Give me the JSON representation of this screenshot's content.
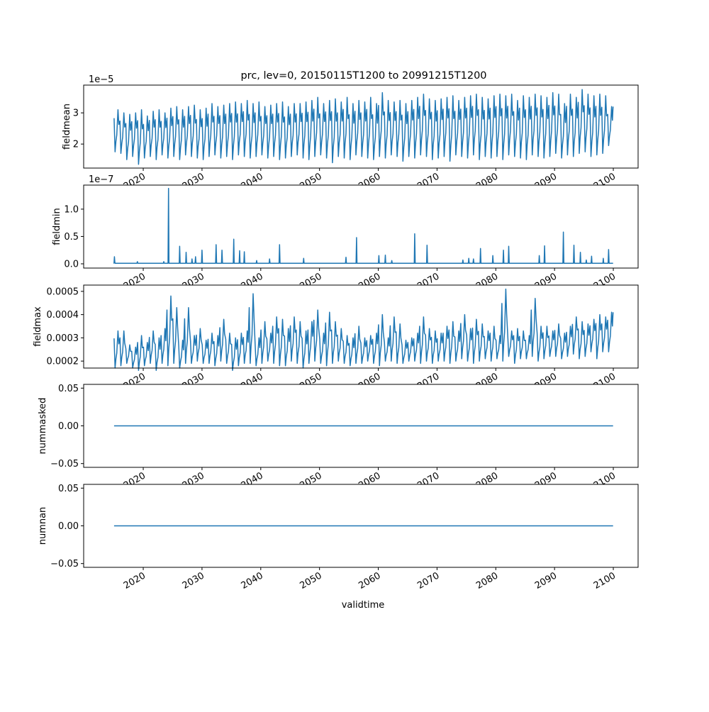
{
  "chart_data": {
    "type": "line",
    "title": "prc, lev=0, 20150115T1200 to 20991215T1200",
    "xlabel": "validtime",
    "x_range_years": [
      2015,
      2100
    ],
    "x_ticks": [
      "2020",
      "2030",
      "2040",
      "2050",
      "2060",
      "2070",
      "2080",
      "2090",
      "2100"
    ],
    "line_color": "#1f77b4",
    "subplots": [
      {
        "ylabel": "fieldmean",
        "offset_text": "1e−5",
        "scale": 1e-05,
        "ylim": [
          1.23,
          3.89
        ],
        "yticks": [
          {
            "v": 2,
            "label": "2"
          },
          {
            "v": 3,
            "label": "3"
          }
        ],
        "encoding": "annual_peak_trough",
        "peaks": [
          3.1,
          3.0,
          2.95,
          3.0,
          3.1,
          2.9,
          3.05,
          3.1,
          3.0,
          3.15,
          3.2,
          3.1,
          3.2,
          3.25,
          3.1,
          3.15,
          3.3,
          3.2,
          3.25,
          3.3,
          3.35,
          3.3,
          3.4,
          3.3,
          3.35,
          3.2,
          3.25,
          3.3,
          3.35,
          3.2,
          3.3,
          3.3,
          3.35,
          3.4,
          3.5,
          3.3,
          3.4,
          3.45,
          3.35,
          3.5,
          3.3,
          3.4,
          3.35,
          3.5,
          3.3,
          3.65,
          3.4,
          3.35,
          3.4,
          3.3,
          3.4,
          3.5,
          3.6,
          3.45,
          3.4,
          3.45,
          3.5,
          3.55,
          3.4,
          3.5,
          3.55,
          3.6,
          3.5,
          3.45,
          3.55,
          3.6,
          3.55,
          3.6,
          3.4,
          3.55,
          3.5,
          3.6,
          3.55,
          3.5,
          3.65,
          3.6,
          3.3,
          3.6,
          3.5,
          3.75,
          3.6,
          3.55,
          3.6,
          3.55,
          3.2
        ],
        "troughs": [
          1.75,
          1.7,
          1.5,
          1.6,
          1.35,
          1.55,
          1.6,
          1.5,
          1.65,
          1.55,
          1.6,
          1.5,
          1.65,
          1.6,
          1.55,
          1.5,
          1.6,
          1.65,
          1.55,
          1.6,
          1.5,
          1.65,
          1.6,
          1.55,
          1.6,
          1.65,
          1.55,
          1.6,
          1.5,
          1.55,
          1.6,
          1.65,
          1.55,
          1.5,
          1.6,
          1.65,
          1.55,
          1.4,
          1.6,
          1.55,
          1.5,
          1.65,
          1.6,
          1.55,
          1.5,
          1.6,
          1.55,
          1.65,
          1.6,
          1.45,
          1.6,
          1.55,
          1.65,
          1.6,
          1.5,
          1.55,
          1.6,
          1.45,
          1.65,
          1.6,
          1.55,
          1.65,
          1.5,
          1.6,
          1.55,
          1.6,
          1.5,
          1.65,
          1.6,
          1.55,
          1.5,
          1.65,
          1.6,
          1.55,
          1.6,
          1.7,
          1.55,
          1.65,
          1.6,
          1.7,
          1.75,
          1.6,
          1.65,
          1.7,
          1.95
        ]
      },
      {
        "ylabel": "fieldmin",
        "offset_text": "1e−7",
        "scale": 1e-07,
        "ylim": [
          -0.078,
          1.44
        ],
        "yticks": [
          {
            "v": 0,
            "label": "0.0"
          },
          {
            "v": 0.5,
            "label": "0.5"
          },
          {
            "v": 1.0,
            "label": "1.0"
          }
        ],
        "encoding": "baseline_with_spikes",
        "baseline": 0.01,
        "spikes": [
          [
            2015.1,
            0.13
          ],
          [
            2019.0,
            0.04
          ],
          [
            2023.5,
            0.04
          ],
          [
            2024.3,
            1.38
          ],
          [
            2026.2,
            0.32
          ],
          [
            2027.3,
            0.21
          ],
          [
            2028.3,
            0.09
          ],
          [
            2028.9,
            0.13
          ],
          [
            2030.0,
            0.25
          ],
          [
            2032.4,
            0.35
          ],
          [
            2033.4,
            0.25
          ],
          [
            2035.4,
            0.45
          ],
          [
            2036.4,
            0.24
          ],
          [
            2037.2,
            0.22
          ],
          [
            2039.3,
            0.06
          ],
          [
            2041.5,
            0.09
          ],
          [
            2043.2,
            0.35
          ],
          [
            2047.3,
            0.1
          ],
          [
            2054.5,
            0.12
          ],
          [
            2056.3,
            0.48
          ],
          [
            2060.1,
            0.15
          ],
          [
            2061.2,
            0.16
          ],
          [
            2062.3,
            0.06
          ],
          [
            2066.2,
            0.55
          ],
          [
            2068.3,
            0.34
          ],
          [
            2074.4,
            0.07
          ],
          [
            2075.4,
            0.1
          ],
          [
            2076.2,
            0.09
          ],
          [
            2077.4,
            0.28
          ],
          [
            2079.5,
            0.15
          ],
          [
            2081.3,
            0.25
          ],
          [
            2082.2,
            0.32
          ],
          [
            2087.4,
            0.15
          ],
          [
            2088.3,
            0.33
          ],
          [
            2091.5,
            0.58
          ],
          [
            2093.3,
            0.34
          ],
          [
            2094.4,
            0.21
          ],
          [
            2095.4,
            0.07
          ],
          [
            2096.3,
            0.14
          ],
          [
            2098.3,
            0.1
          ],
          [
            2099.2,
            0.26
          ]
        ]
      },
      {
        "ylabel": "fieldmax",
        "offset_text": "",
        "scale": 1,
        "ylim": [
          0.00017,
          0.000527
        ],
        "yticks": [
          {
            "v": 0.0002,
            "label": "0.0002"
          },
          {
            "v": 0.0003,
            "label": "0.0003"
          },
          {
            "v": 0.0004,
            "label": "0.0004"
          },
          {
            "v": 0.0005,
            "label": "0.0005"
          }
        ],
        "encoding": "annual_peak_trough",
        "peaks": [
          0.00033,
          0.00033,
          0.00027,
          0.00026,
          0.00031,
          0.00028,
          0.00033,
          0.0003,
          0.00034,
          0.00048,
          0.00043,
          0.00029,
          0.00043,
          0.00031,
          0.00034,
          0.00029,
          0.00032,
          0.00031,
          0.00038,
          0.00032,
          0.0003,
          0.00032,
          0.00033,
          0.00049,
          0.0003,
          0.00037,
          0.00032,
          0.00039,
          0.00038,
          0.00034,
          0.00039,
          0.00037,
          0.00033,
          0.00037,
          0.00042,
          0.00032,
          0.00041,
          0.00037,
          0.00034,
          0.00031,
          0.0003,
          0.00035,
          0.0003,
          0.00031,
          0.00032,
          0.0004,
          0.0003,
          0.00039,
          0.00036,
          0.00029,
          0.0003,
          0.00032,
          0.00039,
          0.00034,
          0.00033,
          0.00032,
          0.00035,
          0.00037,
          0.00033,
          0.0004,
          0.00034,
          0.00038,
          0.00036,
          0.00033,
          0.00035,
          0.00031,
          0.00051,
          0.00033,
          0.00034,
          0.00033,
          0.00031,
          0.00047,
          0.00035,
          0.00035,
          0.00033,
          0.00036,
          0.00032,
          0.00035,
          0.00039,
          0.00037,
          0.00036,
          0.00038,
          0.0004,
          0.00039,
          0.00041
        ],
        "troughs": [
          0.00017,
          0.00018,
          0.00019,
          0.00017,
          0.00016,
          0.00018,
          0.00019,
          0.00016,
          0.00019,
          0.00018,
          0.00019,
          0.00017,
          0.00019,
          0.00019,
          0.0002,
          0.00019,
          0.00019,
          0.00018,
          0.0002,
          0.00019,
          0.00016,
          0.00018,
          0.00019,
          0.00019,
          0.00018,
          0.00019,
          0.0002,
          0.00019,
          0.00018,
          0.00018,
          0.0002,
          0.00019,
          0.00017,
          0.00019,
          0.0002,
          0.00019,
          0.00018,
          0.00019,
          0.0002,
          0.00019,
          0.00018,
          0.00019,
          0.00019,
          0.0002,
          0.00019,
          0.00018,
          0.0002,
          0.0002,
          0.00019,
          0.00019,
          0.0002,
          0.0002,
          0.00019,
          0.0002,
          0.00019,
          0.0002,
          0.0002,
          0.00019,
          0.0002,
          0.00021,
          0.0002,
          0.00019,
          0.0002,
          0.00021,
          0.0002,
          0.00021,
          0.0002,
          0.00022,
          0.00019,
          0.00021,
          0.00021,
          0.00022,
          0.0002,
          0.00021,
          0.00022,
          0.00022,
          0.00021,
          0.00022,
          0.00023,
          0.00021,
          0.00022,
          0.00024,
          0.00021,
          0.00024,
          0.00024
        ]
      },
      {
        "ylabel": "nummasked",
        "offset_text": "",
        "scale": 1,
        "ylim": [
          -0.055,
          0.055
        ],
        "yticks": [
          {
            "v": -0.05,
            "label": "−0.05"
          },
          {
            "v": 0,
            "label": "0.00"
          },
          {
            "v": 0.05,
            "label": "0.05"
          }
        ],
        "encoding": "constant",
        "value": 0
      },
      {
        "ylabel": "numnan",
        "offset_text": "",
        "scale": 1,
        "ylim": [
          -0.055,
          0.055
        ],
        "yticks": [
          {
            "v": -0.05,
            "label": "−0.05"
          },
          {
            "v": 0,
            "label": "0.00"
          },
          {
            "v": 0.05,
            "label": "0.05"
          }
        ],
        "encoding": "constant",
        "value": 0
      }
    ]
  }
}
